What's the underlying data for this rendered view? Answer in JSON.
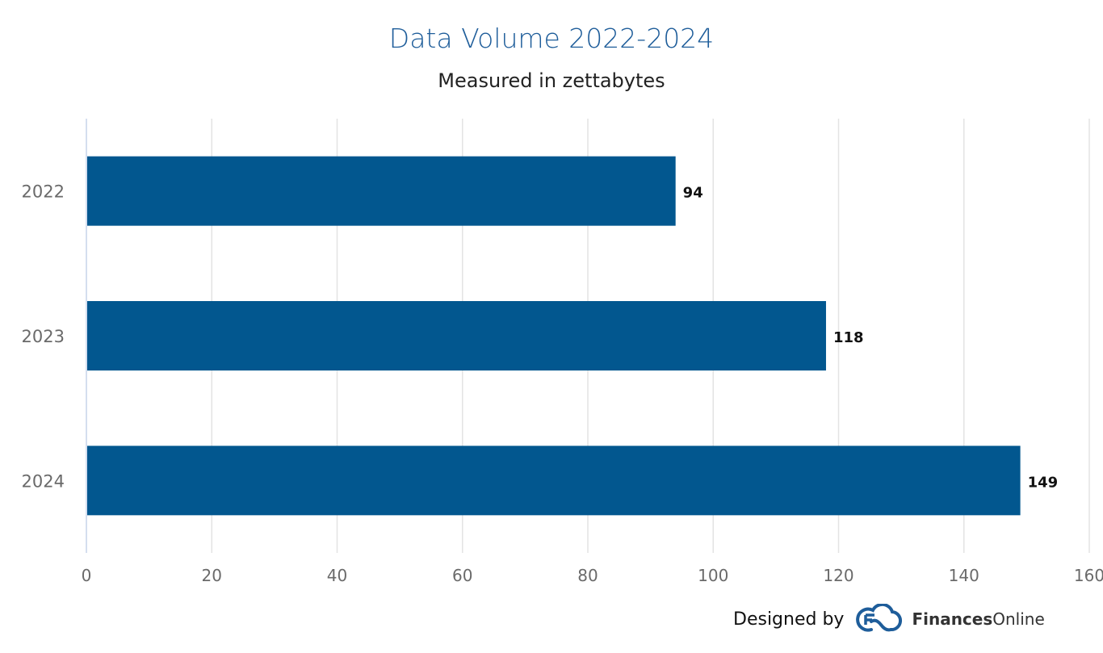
{
  "chart_data": {
    "type": "bar",
    "orientation": "horizontal",
    "title": "Data Volume 2022-2024",
    "subtitle": "Measured in zettabytes",
    "categories": [
      "2022",
      "2023",
      "2024"
    ],
    "values": [
      94,
      118,
      149
    ],
    "data_labels": [
      "94",
      "118",
      "149"
    ],
    "xlim": [
      0,
      160
    ],
    "x_ticks": [
      "0",
      "20",
      "40",
      "60",
      "80",
      "100",
      "120",
      "140",
      "160"
    ],
    "grid": true,
    "bar_color": "#02578f"
  },
  "credit": {
    "text": "Designed by",
    "brand_bold": "Finances",
    "brand_regular": "Online",
    "brand_color": "#1e5d9a"
  }
}
